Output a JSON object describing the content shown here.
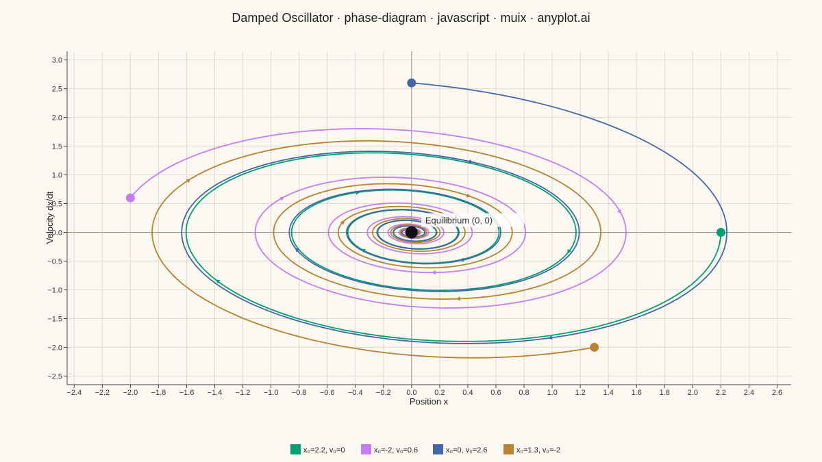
{
  "chart_data": {
    "type": "line",
    "title": "Damped Oscillator · phase-diagram · javascript · muix · anyplot.ai",
    "xlabel": "Position x",
    "ylabel": "Velocity dx/dt",
    "xlim": [
      -2.45,
      2.7
    ],
    "ylim": [
      -2.65,
      3.15
    ],
    "xticks": [
      -2.4,
      -2.2,
      -2.0,
      -1.8,
      -1.6,
      -1.4,
      -1.2,
      -1.0,
      -0.8,
      -0.6,
      -0.4,
      -0.2,
      0.0,
      0.2,
      0.4,
      0.6,
      0.8,
      1.0,
      1.2,
      1.4,
      1.6,
      1.8,
      2.0,
      2.2,
      2.4,
      2.6
    ],
    "xtick_labels": [
      "−2.4",
      "−2.2",
      "−2.0",
      "−1.8",
      "−1.6",
      "−1.4",
      "−1.2",
      "−1.0",
      "−0.8",
      "−0.6",
      "−0.4",
      "−0.2",
      "0.0",
      "0.2",
      "0.4",
      "0.6",
      "0.8",
      "1.0",
      "1.2",
      "1.4",
      "1.6",
      "1.8",
      "2.0",
      "2.2",
      "2.4",
      "2.6"
    ],
    "yticks": [
      3.0,
      2.5,
      2.0,
      1.5,
      1.0,
      0.5,
      0.0,
      -0.5,
      -1.0,
      -1.5,
      -2.0,
      -2.5
    ],
    "ytick_labels": [
      "3.0",
      "2.5",
      "2.0",
      "1.5",
      "1.0",
      "0.5",
      "0.0",
      "−0.5",
      "−1.0",
      "−1.5",
      "−2.0",
      "−2.5"
    ],
    "grid": true,
    "legend_position": "bottom-center",
    "model": {
      "omega": 1.0,
      "damping_ratio": 0.1,
      "t_end": 60,
      "steps": 1200
    },
    "series": [
      {
        "name": "x₀=2.2, v₀=0",
        "x0": 2.2,
        "v0": 0,
        "color": "#009E73"
      },
      {
        "name": "x₀=-2, v₀=0.6",
        "x0": -2.0,
        "v0": 0.6,
        "color": "#C77DF2"
      },
      {
        "name": "x₀=0, v₀=2.6",
        "x0": 0.0,
        "v0": 2.6,
        "color": "#4467A9"
      },
      {
        "name": "x₀=1.3, v₀=-2",
        "x0": 1.3,
        "v0": -2.0,
        "color": "#B8822F"
      }
    ],
    "annotation": {
      "text": "Equilibrium (0, 0)",
      "x": 0,
      "y": 0,
      "marker_color": "#111111"
    },
    "colors": {
      "background": "#FAF8F1",
      "grid": "#DDDAD2",
      "axis": "#444444"
    }
  }
}
